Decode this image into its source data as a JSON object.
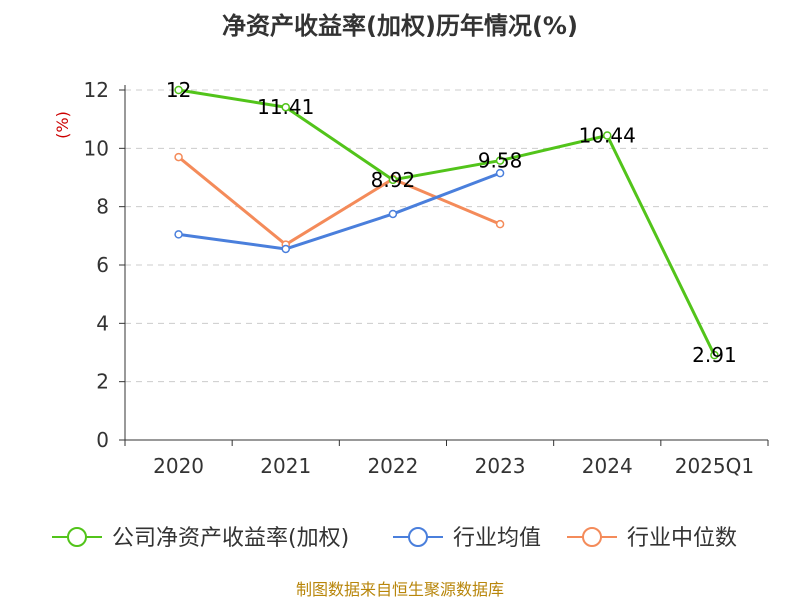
{
  "chart_data": {
    "type": "line",
    "title": "净资产收益率(加权)历年情况(%)",
    "xlabel": "",
    "ylabel": "(%)",
    "categories": [
      "2020",
      "2021",
      "2022",
      "2023",
      "2024",
      "2025Q1"
    ],
    "ylim": [
      0,
      12
    ],
    "yticks": [
      0,
      2,
      4,
      6,
      8,
      10,
      12
    ],
    "grid": true,
    "legend_position": "bottom",
    "series": [
      {
        "name": "公司净资产收益率(加权)",
        "color": "#52c41a",
        "values": [
          12,
          11.41,
          8.92,
          9.58,
          10.44,
          2.91
        ],
        "labels": [
          "12",
          "11.41",
          "8.92",
          "9.58",
          "10.44",
          "2.91"
        ]
      },
      {
        "name": "行业均值",
        "color": "#4a7fdc",
        "values": [
          7.05,
          6.55,
          7.75,
          9.15,
          null,
          null
        ]
      },
      {
        "name": "行业中位数",
        "color": "#f48b5a",
        "values": [
          9.7,
          6.7,
          8.95,
          7.4,
          null,
          null
        ]
      }
    ]
  },
  "source": "制图数据来自恒生聚源数据库"
}
